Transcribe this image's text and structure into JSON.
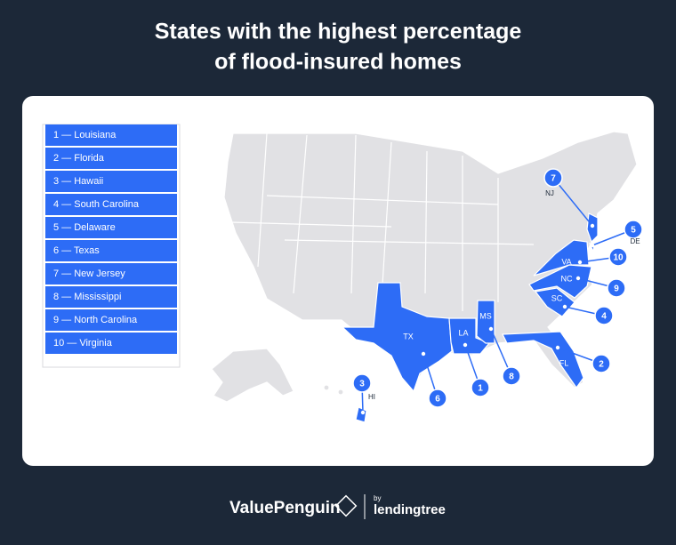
{
  "title": [
    "States with the highest percentage",
    "of flood-insured homes"
  ],
  "legend": [
    "1 — Louisiana",
    "2 — Florida",
    "3 — Hawaii",
    "4 — South Carolina",
    "5 — Delaware",
    "6 — Texas",
    "7 — New Jersey",
    "8 — Mississippi",
    "9 — North Carolina",
    "10 — Virginia"
  ],
  "map": {
    "callouts": [
      {
        "rank": 1,
        "state": "LA"
      },
      {
        "rank": 2,
        "state": "FL"
      },
      {
        "rank": 3,
        "state": "HI"
      },
      {
        "rank": 4,
        "state": "SC"
      },
      {
        "rank": 5,
        "state": "DE"
      },
      {
        "rank": 6,
        "state": "TX"
      },
      {
        "rank": 7,
        "state": "NJ"
      },
      {
        "rank": 8,
        "state": "MS"
      },
      {
        "rank": 9,
        "state": "NC"
      },
      {
        "rank": 10,
        "state": "VA"
      }
    ]
  },
  "footer": {
    "brand": "ValuePenguin",
    "by": "by",
    "partner": "lendingtree"
  }
}
